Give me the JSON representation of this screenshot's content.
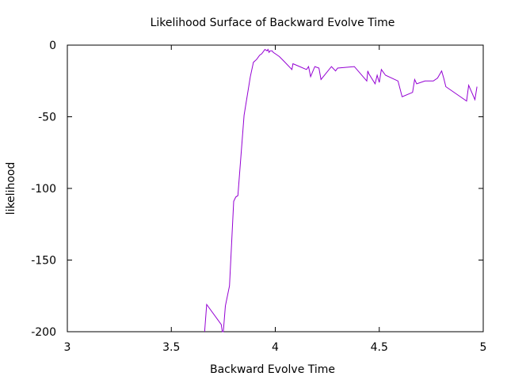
{
  "chart_data": {
    "type": "line",
    "title": "Likelihood Surface of Backward Evolve Time",
    "xlabel": "Backward Evolve Time",
    "ylabel": "likelihood",
    "xlim": [
      3,
      5
    ],
    "ylim": [
      -200,
      0
    ],
    "xticks": [
      3,
      3.5,
      4,
      4.5,
      5
    ],
    "xtick_labels": [
      "3",
      "3.5",
      "4",
      "4.5",
      "5"
    ],
    "yticks": [
      0,
      -50,
      -100,
      -150,
      -200
    ],
    "ytick_labels": [
      "0",
      "-50",
      "-100",
      "-150",
      "-200"
    ],
    "grid": false,
    "series": [
      {
        "color": "#9400d3",
        "x": [
          3.66,
          3.67,
          3.74,
          3.745,
          3.75,
          3.76,
          3.78,
          3.8,
          3.81,
          3.82,
          3.85,
          3.88,
          3.895,
          3.91,
          3.925,
          3.935,
          3.95,
          3.96,
          3.965,
          3.97,
          3.975,
          3.98,
          3.985,
          3.99,
          4.0,
          4.02,
          4.04,
          4.08,
          4.085,
          4.15,
          4.16,
          4.17,
          4.19,
          4.21,
          4.22,
          4.27,
          4.29,
          4.3,
          4.38,
          4.44,
          4.445,
          4.45,
          4.48,
          4.49,
          4.5,
          4.51,
          4.53,
          4.59,
          4.61,
          4.66,
          4.67,
          4.68,
          4.72,
          4.76,
          4.78,
          4.8,
          4.81,
          4.82,
          4.92,
          4.93,
          4.96,
          4.97
        ],
        "y": [
          -200,
          -181,
          -195,
          -200,
          -200,
          -182,
          -168,
          -109,
          -106,
          -105,
          -49,
          -22,
          -12,
          -10,
          -7,
          -6,
          -3,
          -4,
          -3,
          -5,
          -4,
          -4,
          -4,
          -5,
          -6,
          -8,
          -11,
          -17,
          -13,
          -17,
          -15,
          -22,
          -15,
          -16,
          -24,
          -15,
          -18,
          -16,
          -15,
          -25,
          -18,
          -20,
          -27,
          -21,
          -26,
          -17,
          -21,
          -25,
          -36,
          -33,
          -24,
          -27,
          -25,
          -25,
          -23,
          -18,
          -23,
          -29,
          -39,
          -28,
          -38,
          -29
        ]
      }
    ]
  }
}
